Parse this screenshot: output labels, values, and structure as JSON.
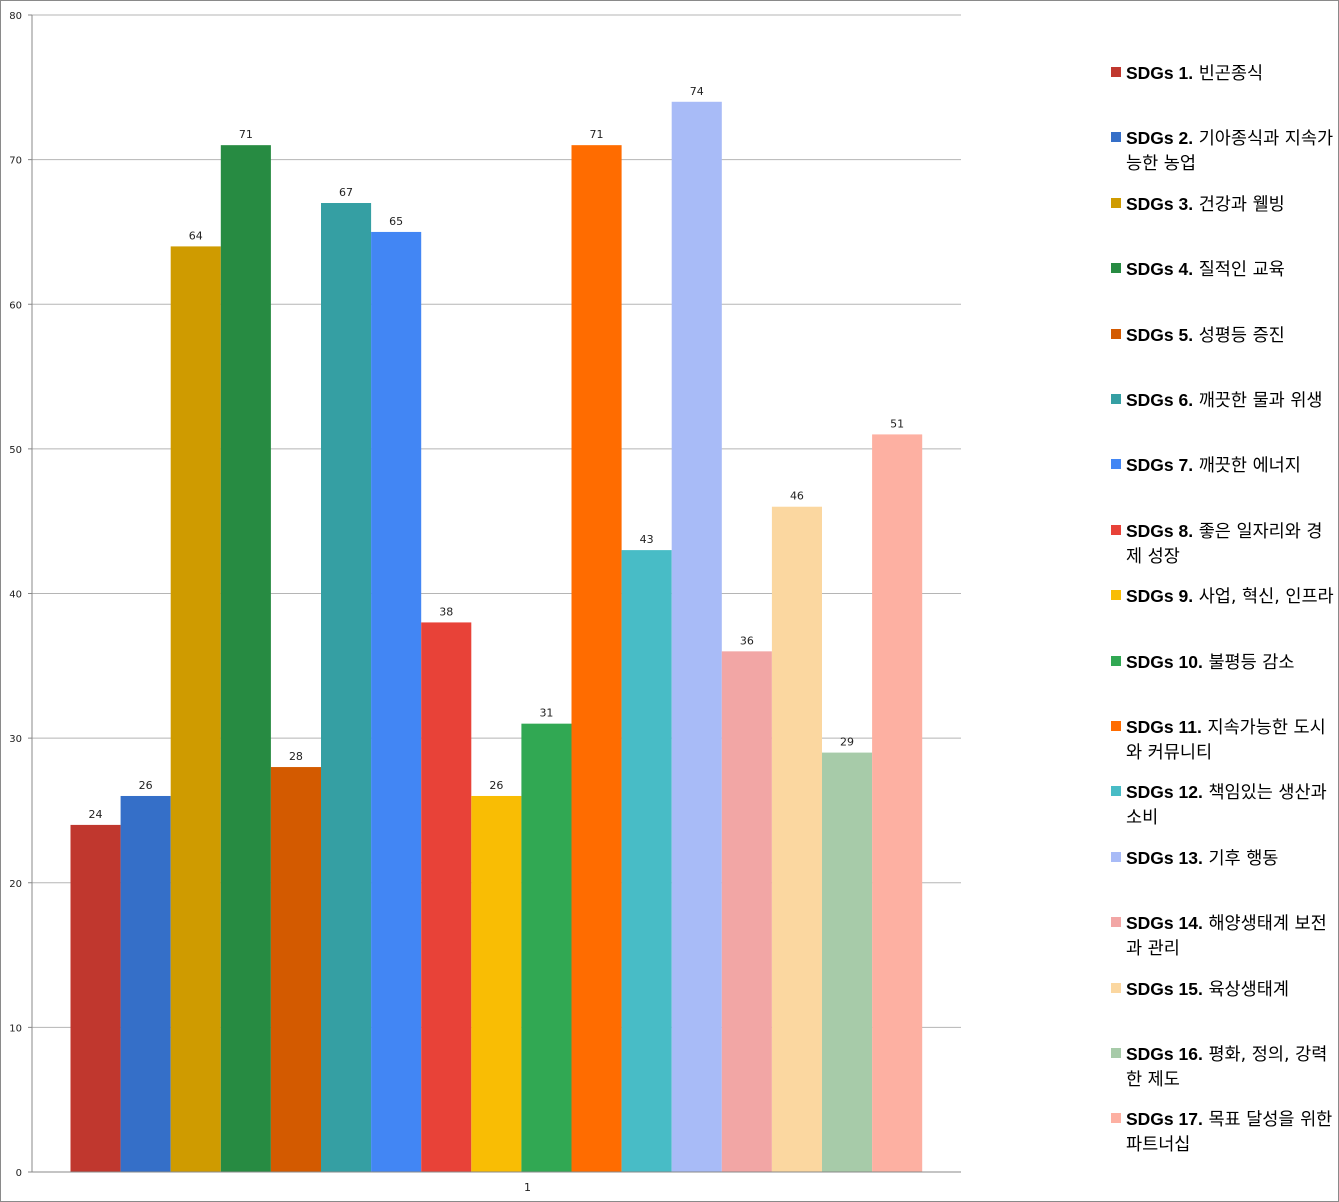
{
  "chart_data": {
    "type": "bar",
    "categories": [
      "1"
    ],
    "ylim": [
      0,
      80
    ],
    "yticks": [
      0,
      10,
      20,
      30,
      40,
      50,
      60,
      70,
      80
    ],
    "grid": true,
    "legend_position": "right",
    "series": [
      {
        "name_prefix": "SDGs 1.",
        "name_text": "빈곤종식",
        "value": 24,
        "color": "#c0372e"
      },
      {
        "name_prefix": "SDGs 2.",
        "name_text": "기아종식과 지속가능한 농업",
        "value": 26,
        "color": "#356fc8"
      },
      {
        "name_prefix": "SDGs 3.",
        "name_text": "건강과 웰빙",
        "value": 64,
        "color": "#cf9b00"
      },
      {
        "name_prefix": "SDGs 4.",
        "name_text": "질적인 교육",
        "value": 71,
        "color": "#278b42"
      },
      {
        "name_prefix": "SDGs 5.",
        "name_text": "성평등 증진",
        "value": 28,
        "color": "#d35a00"
      },
      {
        "name_prefix": "SDGs 6.",
        "name_text": "깨끗한 물과 위생",
        "value": 67,
        "color": "#359fa3"
      },
      {
        "name_prefix": "SDGs 7.",
        "name_text": "깨끗한 에너지",
        "value": 65,
        "color": "#4286f4"
      },
      {
        "name_prefix": "SDGs 8.",
        "name_text": "좋은 일자리와 경제 성장",
        "value": 38,
        "color": "#e84238"
      },
      {
        "name_prefix": "SDGs 9.",
        "name_text": "사업, 혁신, 인프라",
        "value": 26,
        "color": "#f9bd04"
      },
      {
        "name_prefix": "SDGs 10.",
        "name_text": "불평등 감소",
        "value": 31,
        "color": "#31a853"
      },
      {
        "name_prefix": "SDGs 11.",
        "name_text": "지속가능한 도시와 커뮤니티",
        "value": 71,
        "color": "#ff6c00"
      },
      {
        "name_prefix": "SDGs 12.",
        "name_text": "책임있는 생산과 소비",
        "value": 43,
        "color": "#48bcc6"
      },
      {
        "name_prefix": "SDGs 13.",
        "name_text": "기후 행동",
        "value": 74,
        "color": "#a8bbf7"
      },
      {
        "name_prefix": "SDGs 14.",
        "name_text": "해양생태계 보전과 관리",
        "value": 36,
        "color": "#f2a6a5"
      },
      {
        "name_prefix": "SDGs 15.",
        "name_text": "육상생태계",
        "value": 46,
        "color": "#fbd7a0"
      },
      {
        "name_prefix": "SDGs 16.",
        "name_text": "평화, 정의, 강력한 제도",
        "value": 29,
        "color": "#a7cba9"
      },
      {
        "name_prefix": "SDGs 17.",
        "name_text": "목표 달성을 위한 파트너십",
        "value": 51,
        "color": "#fdb0a2"
      }
    ]
  }
}
